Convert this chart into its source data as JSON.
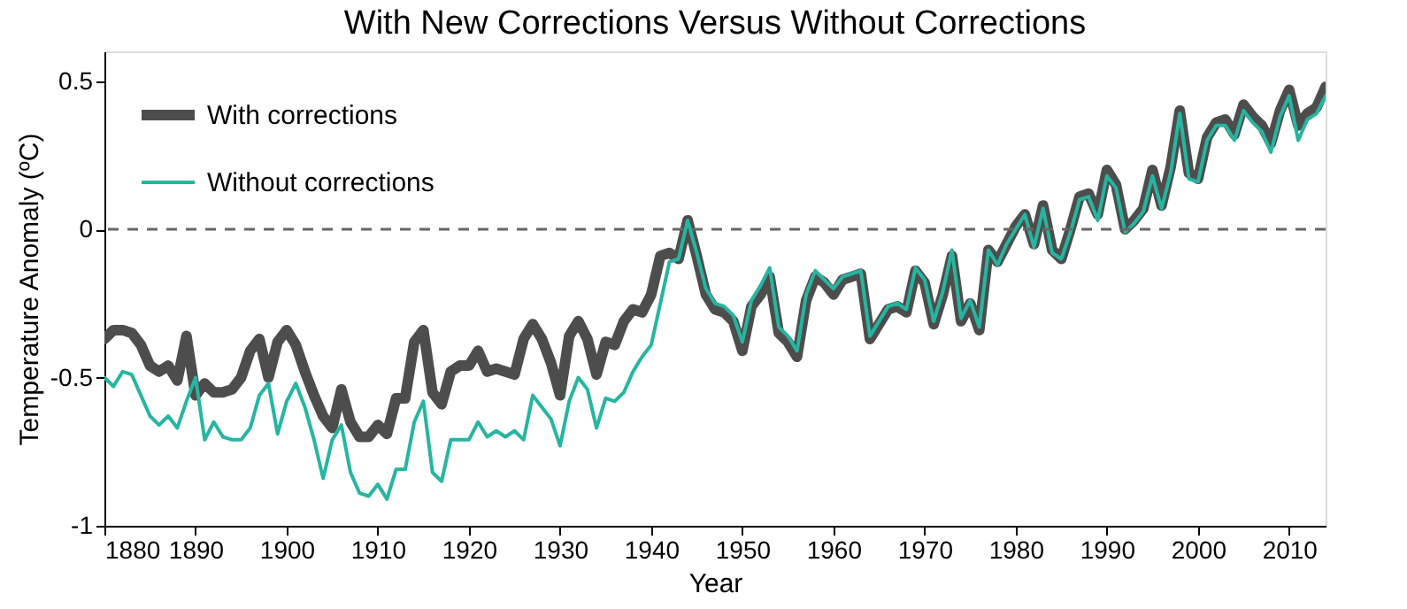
{
  "chart_data": {
    "type": "line",
    "title": "With New Corrections Versus Without Corrections",
    "xlabel": "Year",
    "ylabel": "Temperature Anomaly (ºC)",
    "x": [
      1880,
      1881,
      1882,
      1883,
      1884,
      1885,
      1886,
      1887,
      1888,
      1889,
      1890,
      1891,
      1892,
      1893,
      1894,
      1895,
      1896,
      1897,
      1898,
      1899,
      1900,
      1901,
      1902,
      1903,
      1904,
      1905,
      1906,
      1907,
      1908,
      1909,
      1910,
      1911,
      1912,
      1913,
      1914,
      1915,
      1916,
      1917,
      1918,
      1919,
      1920,
      1921,
      1922,
      1923,
      1924,
      1925,
      1926,
      1927,
      1928,
      1929,
      1930,
      1931,
      1932,
      1933,
      1934,
      1935,
      1936,
      1937,
      1938,
      1939,
      1940,
      1941,
      1942,
      1943,
      1944,
      1945,
      1946,
      1947,
      1948,
      1949,
      1950,
      1951,
      1952,
      1953,
      1954,
      1955,
      1956,
      1957,
      1958,
      1959,
      1960,
      1961,
      1962,
      1963,
      1964,
      1965,
      1966,
      1967,
      1968,
      1969,
      1970,
      1971,
      1972,
      1973,
      1974,
      1975,
      1976,
      1977,
      1978,
      1979,
      1980,
      1981,
      1982,
      1983,
      1984,
      1985,
      1986,
      1987,
      1988,
      1989,
      1990,
      1991,
      1992,
      1993,
      1994,
      1995,
      1996,
      1997,
      1998,
      1999,
      2000,
      2001,
      2002,
      2003,
      2004,
      2005,
      2006,
      2007,
      2008,
      2009,
      2010,
      2011,
      2012,
      2013,
      2014
    ],
    "series": [
      {
        "name": "With corrections",
        "color": "#4d4d4d",
        "values": [
          -0.37,
          -0.34,
          -0.34,
          -0.35,
          -0.39,
          -0.46,
          -0.48,
          -0.46,
          -0.51,
          -0.36,
          -0.56,
          -0.52,
          -0.55,
          -0.55,
          -0.54,
          -0.5,
          -0.41,
          -0.37,
          -0.5,
          -0.38,
          -0.34,
          -0.39,
          -0.48,
          -0.56,
          -0.63,
          -0.67,
          -0.54,
          -0.65,
          -0.7,
          -0.7,
          -0.66,
          -0.69,
          -0.57,
          -0.57,
          -0.38,
          -0.34,
          -0.55,
          -0.59,
          -0.48,
          -0.46,
          -0.46,
          -0.41,
          -0.48,
          -0.47,
          -0.48,
          -0.49,
          -0.37,
          -0.32,
          -0.37,
          -0.45,
          -0.56,
          -0.36,
          -0.31,
          -0.37,
          -0.49,
          -0.38,
          -0.39,
          -0.31,
          -0.27,
          -0.28,
          -0.22,
          -0.09,
          -0.08,
          -0.1,
          0.03,
          -0.09,
          -0.22,
          -0.27,
          -0.28,
          -0.31,
          -0.41,
          -0.26,
          -0.22,
          -0.16,
          -0.35,
          -0.38,
          -0.43,
          -0.24,
          -0.16,
          -0.18,
          -0.22,
          -0.17,
          -0.16,
          -0.15,
          -0.37,
          -0.32,
          -0.27,
          -0.26,
          -0.28,
          -0.14,
          -0.18,
          -0.32,
          -0.22,
          -0.09,
          -0.31,
          -0.25,
          -0.34,
          -0.07,
          -0.11,
          -0.05,
          0.01,
          0.05,
          -0.05,
          0.08,
          -0.07,
          -0.1,
          0.0,
          0.11,
          0.12,
          0.05,
          0.2,
          0.15,
          0.0,
          0.03,
          0.07,
          0.2,
          0.08,
          0.21,
          0.4,
          0.19,
          0.17,
          0.31,
          0.36,
          0.37,
          0.32,
          0.42,
          0.38,
          0.35,
          0.29,
          0.4,
          0.47,
          0.35,
          0.39,
          0.41,
          0.48
        ]
      },
      {
        "name": "Without corrections",
        "color": "#26b5a0",
        "values": [
          -0.5,
          -0.53,
          -0.48,
          -0.49,
          -0.56,
          -0.63,
          -0.66,
          -0.63,
          -0.67,
          -0.58,
          -0.5,
          -0.71,
          -0.65,
          -0.7,
          -0.71,
          -0.71,
          -0.67,
          -0.56,
          -0.52,
          -0.69,
          -0.58,
          -0.52,
          -0.6,
          -0.71,
          -0.84,
          -0.71,
          -0.66,
          -0.82,
          -0.89,
          -0.9,
          -0.86,
          -0.91,
          -0.81,
          -0.81,
          -0.65,
          -0.58,
          -0.82,
          -0.85,
          -0.71,
          -0.71,
          -0.71,
          -0.65,
          -0.7,
          -0.68,
          -0.7,
          -0.68,
          -0.71,
          -0.56,
          -0.6,
          -0.64,
          -0.73,
          -0.58,
          -0.5,
          -0.54,
          -0.67,
          -0.57,
          -0.58,
          -0.55,
          -0.48,
          -0.43,
          -0.39,
          -0.25,
          -0.11,
          -0.1,
          0.03,
          -0.08,
          -0.2,
          -0.25,
          -0.26,
          -0.29,
          -0.38,
          -0.24,
          -0.19,
          -0.13,
          -0.33,
          -0.36,
          -0.41,
          -0.22,
          -0.14,
          -0.17,
          -0.2,
          -0.16,
          -0.15,
          -0.14,
          -0.36,
          -0.31,
          -0.26,
          -0.25,
          -0.27,
          -0.13,
          -0.17,
          -0.31,
          -0.21,
          -0.07,
          -0.3,
          -0.24,
          -0.33,
          -0.07,
          -0.12,
          -0.05,
          0.0,
          0.05,
          -0.06,
          0.07,
          -0.08,
          -0.1,
          -0.01,
          0.1,
          0.11,
          0.03,
          0.18,
          0.14,
          -0.01,
          0.02,
          0.06,
          0.18,
          0.07,
          0.19,
          0.39,
          0.17,
          0.16,
          0.3,
          0.35,
          0.35,
          0.3,
          0.4,
          0.36,
          0.33,
          0.26,
          0.38,
          0.45,
          0.3,
          0.37,
          0.39,
          0.45
        ]
      }
    ],
    "xlim": [
      1880,
      2014
    ],
    "xticks": [
      1880,
      1890,
      1900,
      1910,
      1920,
      1930,
      1940,
      1950,
      1960,
      1970,
      1980,
      1990,
      2000,
      2010
    ],
    "ylim": [
      -1,
      0.6
    ],
    "yticks": [
      -1,
      -0.5,
      0,
      0.5
    ],
    "ref_lines": [
      {
        "axis": "y",
        "value": 0,
        "color": "#666666",
        "line_style": "dashed"
      }
    ],
    "legend": "top left",
    "grid": false,
    "marker": "none",
    "line_style": "solid"
  }
}
